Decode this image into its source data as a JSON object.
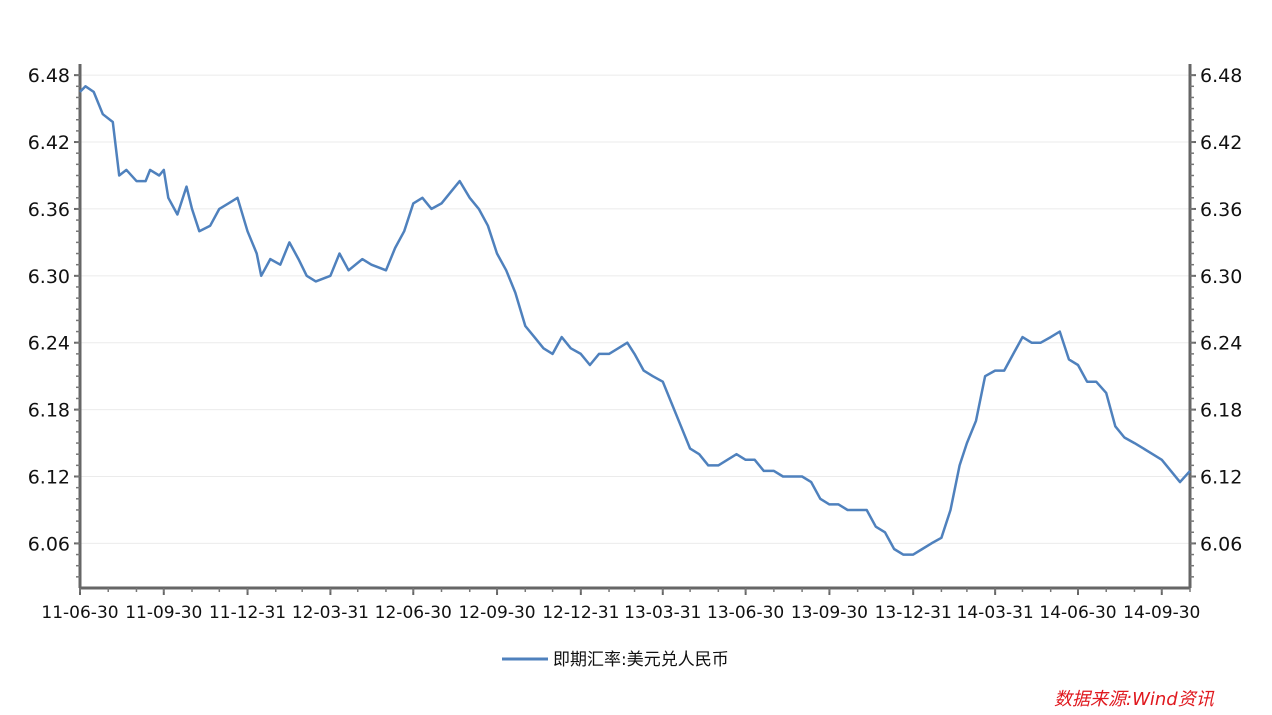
{
  "chart_data": {
    "type": "line",
    "x_start": "11-06-30",
    "x_end": "14-10-31",
    "x_ticks": [
      "11-06-30",
      "11-09-30",
      "11-12-31",
      "12-03-31",
      "12-06-30",
      "12-09-30",
      "12-12-31",
      "13-03-31",
      "13-06-30",
      "13-09-30",
      "13-12-31",
      "14-03-31",
      "14-06-30",
      "14-09-30"
    ],
    "y_ticks_left": [
      "6.48",
      "6.42",
      "6.36",
      "6.30",
      "6.24",
      "6.18",
      "6.12",
      "6.06"
    ],
    "y_ticks_right": [
      "6.48",
      "6.42",
      "6.36",
      "6.30",
      "6.24",
      "6.18",
      "6.12",
      "6.06"
    ],
    "ylim": [
      6.02,
      6.49
    ],
    "grid": true,
    "legend_position": "bottom",
    "source": "数据来源:Wind资讯",
    "series": [
      {
        "name": "即期汇率:美元兑人民币",
        "color": "#4f81bd",
        "points": [
          [
            "11-06-30",
            6.465
          ],
          [
            "11-07-06",
            6.47
          ],
          [
            "11-07-15",
            6.465
          ],
          [
            "11-07-25",
            6.445
          ],
          [
            "11-08-05",
            6.438
          ],
          [
            "11-08-12",
            6.39
          ],
          [
            "11-08-20",
            6.395
          ],
          [
            "11-08-31",
            6.385
          ],
          [
            "11-09-10",
            6.385
          ],
          [
            "11-09-15",
            6.395
          ],
          [
            "11-09-25",
            6.39
          ],
          [
            "11-09-30",
            6.395
          ],
          [
            "11-10-05",
            6.37
          ],
          [
            "11-10-15",
            6.355
          ],
          [
            "11-10-25",
            6.38
          ],
          [
            "11-10-31",
            6.36
          ],
          [
            "11-11-08",
            6.34
          ],
          [
            "11-11-20",
            6.345
          ],
          [
            "11-11-30",
            6.36
          ],
          [
            "11-12-10",
            6.365
          ],
          [
            "11-12-20",
            6.37
          ],
          [
            "11-12-31",
            6.34
          ],
          [
            "12-01-10",
            6.32
          ],
          [
            "12-01-15",
            6.3
          ],
          [
            "12-01-25",
            6.315
          ],
          [
            "12-02-05",
            6.31
          ],
          [
            "12-02-15",
            6.33
          ],
          [
            "12-02-25",
            6.315
          ],
          [
            "12-03-05",
            6.3
          ],
          [
            "12-03-15",
            6.295
          ],
          [
            "12-03-31",
            6.3
          ],
          [
            "12-04-10",
            6.32
          ],
          [
            "12-04-20",
            6.305
          ],
          [
            "12-05-05",
            6.315
          ],
          [
            "12-05-15",
            6.31
          ],
          [
            "12-05-31",
            6.305
          ],
          [
            "12-06-10",
            6.325
          ],
          [
            "12-06-20",
            6.34
          ],
          [
            "12-06-30",
            6.365
          ],
          [
            "12-07-10",
            6.37
          ],
          [
            "12-07-20",
            6.36
          ],
          [
            "12-07-31",
            6.365
          ],
          [
            "12-08-10",
            6.375
          ],
          [
            "12-08-20",
            6.385
          ],
          [
            "12-08-31",
            6.37
          ],
          [
            "12-09-10",
            6.36
          ],
          [
            "12-09-20",
            6.345
          ],
          [
            "12-09-30",
            6.32
          ],
          [
            "12-10-10",
            6.305
          ],
          [
            "12-10-20",
            6.285
          ],
          [
            "12-10-31",
            6.255
          ],
          [
            "12-11-10",
            6.245
          ],
          [
            "12-11-20",
            6.235
          ],
          [
            "12-11-30",
            6.23
          ],
          [
            "12-12-10",
            6.245
          ],
          [
            "12-12-20",
            6.235
          ],
          [
            "12-12-31",
            6.23
          ],
          [
            "13-01-10",
            6.22
          ],
          [
            "13-01-20",
            6.23
          ],
          [
            "13-01-31",
            6.23
          ],
          [
            "13-02-10",
            6.235
          ],
          [
            "13-02-20",
            6.24
          ],
          [
            "13-02-28",
            6.23
          ],
          [
            "13-03-10",
            6.215
          ],
          [
            "13-03-20",
            6.21
          ],
          [
            "13-03-31",
            6.205
          ],
          [
            "13-04-10",
            6.185
          ],
          [
            "13-04-20",
            6.165
          ],
          [
            "13-04-30",
            6.145
          ],
          [
            "13-05-10",
            6.14
          ],
          [
            "13-05-20",
            6.13
          ],
          [
            "13-05-31",
            6.13
          ],
          [
            "13-06-10",
            6.135
          ],
          [
            "13-06-20",
            6.14
          ],
          [
            "13-06-30",
            6.135
          ],
          [
            "13-07-10",
            6.135
          ],
          [
            "13-07-20",
            6.125
          ],
          [
            "13-07-31",
            6.125
          ],
          [
            "13-08-10",
            6.12
          ],
          [
            "13-08-20",
            6.12
          ],
          [
            "13-08-31",
            6.12
          ],
          [
            "13-09-10",
            6.115
          ],
          [
            "13-09-20",
            6.1
          ],
          [
            "13-09-30",
            6.095
          ],
          [
            "13-10-10",
            6.095
          ],
          [
            "13-10-20",
            6.09
          ],
          [
            "13-10-31",
            6.09
          ],
          [
            "13-11-10",
            6.09
          ],
          [
            "13-11-20",
            6.075
          ],
          [
            "13-11-30",
            6.07
          ],
          [
            "13-12-10",
            6.055
          ],
          [
            "13-12-20",
            6.05
          ],
          [
            "13-12-31",
            6.05
          ],
          [
            "14-01-10",
            6.055
          ],
          [
            "14-01-20",
            6.06
          ],
          [
            "14-01-31",
            6.065
          ],
          [
            "14-02-10",
            6.09
          ],
          [
            "14-02-20",
            6.13
          ],
          [
            "14-02-28",
            6.15
          ],
          [
            "14-03-10",
            6.17
          ],
          [
            "14-03-20",
            6.21
          ],
          [
            "14-03-31",
            6.215
          ],
          [
            "14-04-10",
            6.215
          ],
          [
            "14-04-20",
            6.23
          ],
          [
            "14-04-30",
            6.245
          ],
          [
            "14-05-10",
            6.24
          ],
          [
            "14-05-20",
            6.24
          ],
          [
            "14-05-31",
            6.245
          ],
          [
            "14-06-10",
            6.25
          ],
          [
            "14-06-20",
            6.225
          ],
          [
            "14-06-30",
            6.22
          ],
          [
            "14-07-10",
            6.205
          ],
          [
            "14-07-20",
            6.205
          ],
          [
            "14-07-31",
            6.195
          ],
          [
            "14-08-10",
            6.165
          ],
          [
            "14-08-20",
            6.155
          ],
          [
            "14-08-31",
            6.15
          ],
          [
            "14-09-10",
            6.145
          ],
          [
            "14-09-20",
            6.14
          ],
          [
            "14-09-30",
            6.135
          ],
          [
            "14-10-10",
            6.125
          ],
          [
            "14-10-20",
            6.115
          ],
          [
            "14-10-31",
            6.125
          ]
        ]
      }
    ]
  }
}
